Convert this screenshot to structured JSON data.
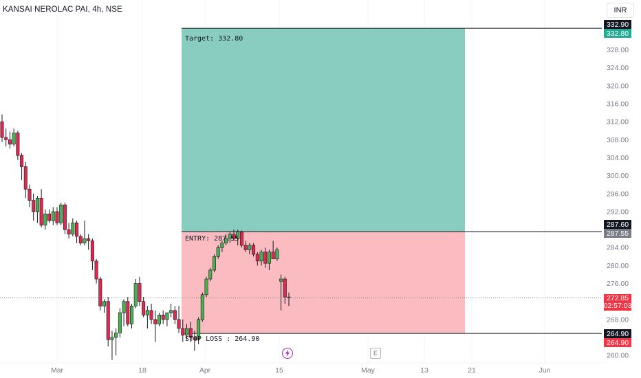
{
  "header": {
    "title": "KANSAI NEROLAC PAI, 4h, NSE",
    "currency": "INR"
  },
  "position": {
    "target_label": "Target: 332.80",
    "entry_label": "ENTRY: 287.55",
    "stop_label": "STOP LOSS : 264.90",
    "target": 332.8,
    "entry": 287.55,
    "stop": 264.9,
    "start_x": 264,
    "end_x": 676
  },
  "price_badges": {
    "target_top": "332.90",
    "target": "332.80",
    "entry_top": "287.60",
    "entry": "287.55",
    "current": "272.85",
    "countdown": "02:57:03",
    "stop_top": "264.90",
    "stop": "264.90"
  },
  "colors": {
    "profit_fill": "#88cdc0",
    "loss_fill": "#fabcc1",
    "bull": "#4caf50",
    "bear": "#e0294f",
    "badge_green": "#22ab94",
    "badge_red": "#f23645",
    "badge_black": "#131722",
    "badge_gray": "#787b86"
  },
  "events": {
    "dividend_icon": "lightning-icon",
    "earnings_label": "E"
  },
  "chart_data": {
    "type": "candlestick",
    "title": "KANSAI NEROLAC PAI, 4h, NSE",
    "y_ticks": [
      "260.00",
      "264.00",
      "268.00",
      "272.00",
      "276.00",
      "280.00",
      "284.00",
      "288.00",
      "292.00",
      "296.00",
      "300.00",
      "304.00",
      "308.00",
      "312.00",
      "316.00",
      "320.00",
      "324.00",
      "328.00",
      "332.00"
    ],
    "ylim": [
      258.8,
      334.5
    ],
    "x_ticks": [
      "Mar",
      "18",
      "Apr",
      "15",
      "May",
      "13",
      "21",
      "Jun"
    ],
    "current_price": 272.85,
    "candles": [
      {
        "o": 312.0,
        "h": 313.6,
        "l": 307.5,
        "c": 308.5
      },
      {
        "o": 308.5,
        "h": 310.5,
        "l": 306.5,
        "c": 308.0
      },
      {
        "o": 308.0,
        "h": 309.8,
        "l": 306.0,
        "c": 307.0
      },
      {
        "o": 307.0,
        "h": 310.5,
        "l": 306.5,
        "c": 309.5
      },
      {
        "o": 309.5,
        "h": 310.0,
        "l": 303.5,
        "c": 304.5
      },
      {
        "o": 304.5,
        "h": 305.0,
        "l": 299.0,
        "c": 302.0
      },
      {
        "o": 302.0,
        "h": 303.0,
        "l": 295.0,
        "c": 297.0
      },
      {
        "o": 297.0,
        "h": 298.0,
        "l": 293.0,
        "c": 294.5
      },
      {
        "o": 294.5,
        "h": 296.0,
        "l": 290.0,
        "c": 292.0
      },
      {
        "o": 292.0,
        "h": 295.5,
        "l": 289.5,
        "c": 295.0
      },
      {
        "o": 295.0,
        "h": 297.0,
        "l": 288.5,
        "c": 289.0
      },
      {
        "o": 289.0,
        "h": 292.5,
        "l": 288.0,
        "c": 291.5
      },
      {
        "o": 291.5,
        "h": 292.5,
        "l": 289.5,
        "c": 290.0
      },
      {
        "o": 290.0,
        "h": 293.0,
        "l": 289.0,
        "c": 292.0
      },
      {
        "o": 292.0,
        "h": 293.0,
        "l": 289.0,
        "c": 289.5
      },
      {
        "o": 289.5,
        "h": 294.0,
        "l": 289.0,
        "c": 293.5
      },
      {
        "o": 293.5,
        "h": 294.0,
        "l": 287.0,
        "c": 288.0
      },
      {
        "o": 288.0,
        "h": 289.5,
        "l": 286.0,
        "c": 287.0
      },
      {
        "o": 287.0,
        "h": 290.5,
        "l": 286.5,
        "c": 289.5
      },
      {
        "o": 289.5,
        "h": 290.0,
        "l": 285.0,
        "c": 286.5
      },
      {
        "o": 286.5,
        "h": 287.0,
        "l": 284.5,
        "c": 285.0
      },
      {
        "o": 285.0,
        "h": 290.0,
        "l": 284.5,
        "c": 286.0
      },
      {
        "o": 286.0,
        "h": 287.0,
        "l": 283.5,
        "c": 285.5
      },
      {
        "o": 285.5,
        "h": 286.0,
        "l": 279.0,
        "c": 281.0
      },
      {
        "o": 281.0,
        "h": 281.5,
        "l": 276.0,
        "c": 277.0
      },
      {
        "o": 277.0,
        "h": 277.5,
        "l": 270.0,
        "c": 271.0
      },
      {
        "o": 271.0,
        "h": 272.5,
        "l": 269.5,
        "c": 272.0
      },
      {
        "o": 272.0,
        "h": 273.0,
        "l": 262.0,
        "c": 263.5
      },
      {
        "o": 263.5,
        "h": 265.5,
        "l": 259.0,
        "c": 264.0
      },
      {
        "o": 264.0,
        "h": 266.0,
        "l": 260.0,
        "c": 265.0
      },
      {
        "o": 265.0,
        "h": 270.5,
        "l": 264.0,
        "c": 269.5
      },
      {
        "o": 269.5,
        "h": 272.5,
        "l": 266.5,
        "c": 272.0
      },
      {
        "o": 272.0,
        "h": 273.0,
        "l": 266.5,
        "c": 267.0
      },
      {
        "o": 267.0,
        "h": 271.5,
        "l": 266.0,
        "c": 271.0
      },
      {
        "o": 271.0,
        "h": 277.0,
        "l": 270.5,
        "c": 276.0
      },
      {
        "o": 276.0,
        "h": 277.5,
        "l": 271.0,
        "c": 272.0
      },
      {
        "o": 272.0,
        "h": 273.0,
        "l": 268.5,
        "c": 269.0
      },
      {
        "o": 269.0,
        "h": 271.0,
        "l": 266.0,
        "c": 270.0
      },
      {
        "o": 270.0,
        "h": 271.5,
        "l": 267.0,
        "c": 268.0
      },
      {
        "o": 268.0,
        "h": 270.0,
        "l": 263.0,
        "c": 267.0
      },
      {
        "o": 267.0,
        "h": 269.5,
        "l": 266.5,
        "c": 269.0
      },
      {
        "o": 269.0,
        "h": 270.0,
        "l": 267.0,
        "c": 268.0
      },
      {
        "o": 268.0,
        "h": 269.5,
        "l": 266.5,
        "c": 269.5
      },
      {
        "o": 269.5,
        "h": 271.5,
        "l": 268.5,
        "c": 270.0
      },
      {
        "o": 270.0,
        "h": 271.0,
        "l": 267.0,
        "c": 268.0
      },
      {
        "o": 268.0,
        "h": 271.0,
        "l": 265.0,
        "c": 266.0
      },
      {
        "o": 266.0,
        "h": 268.0,
        "l": 263.0,
        "c": 264.5
      },
      {
        "o": 264.5,
        "h": 267.0,
        "l": 263.5,
        "c": 266.0
      },
      {
        "o": 266.0,
        "h": 267.5,
        "l": 263.0,
        "c": 264.0
      },
      {
        "o": 264.0,
        "h": 265.5,
        "l": 261.0,
        "c": 263.5
      },
      {
        "o": 263.5,
        "h": 268.5,
        "l": 262.5,
        "c": 268.0
      },
      {
        "o": 268.0,
        "h": 274.0,
        "l": 267.5,
        "c": 273.5
      },
      {
        "o": 273.5,
        "h": 277.5,
        "l": 273.0,
        "c": 277.0
      },
      {
        "o": 277.0,
        "h": 279.5,
        "l": 276.5,
        "c": 279.0
      },
      {
        "o": 279.0,
        "h": 282.5,
        "l": 278.5,
        "c": 282.0
      },
      {
        "o": 282.0,
        "h": 284.5,
        "l": 281.5,
        "c": 284.0
      },
      {
        "o": 284.0,
        "h": 285.5,
        "l": 283.0,
        "c": 285.0
      },
      {
        "o": 285.0,
        "h": 287.0,
        "l": 284.5,
        "c": 286.0
      },
      {
        "o": 286.0,
        "h": 287.5,
        "l": 285.0,
        "c": 287.0
      },
      {
        "o": 287.0,
        "h": 288.0,
        "l": 285.5,
        "c": 286.0
      },
      {
        "o": 286.0,
        "h": 288.0,
        "l": 284.5,
        "c": 287.5
      },
      {
        "o": 287.5,
        "h": 287.8,
        "l": 284.0,
        "c": 284.5
      },
      {
        "o": 284.5,
        "h": 285.5,
        "l": 283.0,
        "c": 283.5
      },
      {
        "o": 283.5,
        "h": 285.0,
        "l": 282.5,
        "c": 284.5
      },
      {
        "o": 284.5,
        "h": 285.0,
        "l": 282.0,
        "c": 282.5
      },
      {
        "o": 282.5,
        "h": 283.0,
        "l": 280.0,
        "c": 281.0
      },
      {
        "o": 281.0,
        "h": 283.5,
        "l": 280.0,
        "c": 283.0
      },
      {
        "o": 283.0,
        "h": 284.0,
        "l": 279.5,
        "c": 280.5
      },
      {
        "o": 280.5,
        "h": 283.5,
        "l": 279.0,
        "c": 283.0
      },
      {
        "o": 283.0,
        "h": 285.5,
        "l": 282.0,
        "c": 281.5
      },
      {
        "o": 281.5,
        "h": 284.0,
        "l": 281.0,
        "c": 283.5
      },
      {
        "o": 276.5,
        "h": 278.0,
        "l": 270.0,
        "c": 277.0
      },
      {
        "o": 277.0,
        "h": 277.5,
        "l": 271.5,
        "c": 273.0
      },
      {
        "o": 273.0,
        "h": 274.0,
        "l": 271.0,
        "c": 272.85
      }
    ]
  }
}
